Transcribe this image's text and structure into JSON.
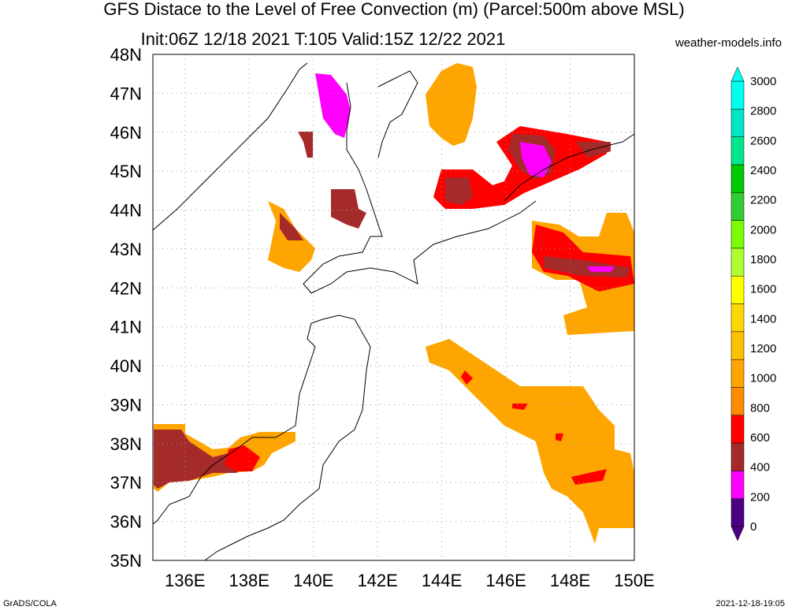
{
  "header": {
    "title_line1": "GFS Distace to the Level of Free Convection (m) (Parcel:500m above MSL)",
    "title_line2": "Init:06Z 12/18 2021 T:105 Valid:15Z 12/22 2021",
    "credit": "weather-models.info"
  },
  "map": {
    "region": "Japan / Hokkaido / Sakhalin",
    "lon_range": [
      135,
      150
    ],
    "lat_range": [
      35,
      48
    ],
    "x_ticks": [
      "136E",
      "138E",
      "140E",
      "142E",
      "144E",
      "146E",
      "148E",
      "150E"
    ],
    "y_ticks": [
      "35N",
      "36N",
      "37N",
      "38N",
      "39N",
      "40N",
      "41N",
      "42N",
      "43N",
      "44N",
      "45N",
      "46N",
      "47N",
      "48N"
    ],
    "grid": true
  },
  "colorbar": {
    "labels": [
      "0",
      "200",
      "400",
      "600",
      "800",
      "1000",
      "1200",
      "1400",
      "1600",
      "1800",
      "2000",
      "2200",
      "2400",
      "2600",
      "2800",
      "3000"
    ],
    "colors": [
      "#4b0082",
      "#ff00ff",
      "#a52a2a",
      "#ff0000",
      "#ff8c00",
      "#ffa500",
      "#ffc000",
      "#ffd700",
      "#ffff00",
      "#adff2f",
      "#7cfc00",
      "#32cd32",
      "#00c800",
      "#00e68c",
      "#00e6c8",
      "#00ffee"
    ]
  },
  "footer": {
    "left": "GrADS/COLA",
    "right": "2021-12-18-19:05"
  }
}
